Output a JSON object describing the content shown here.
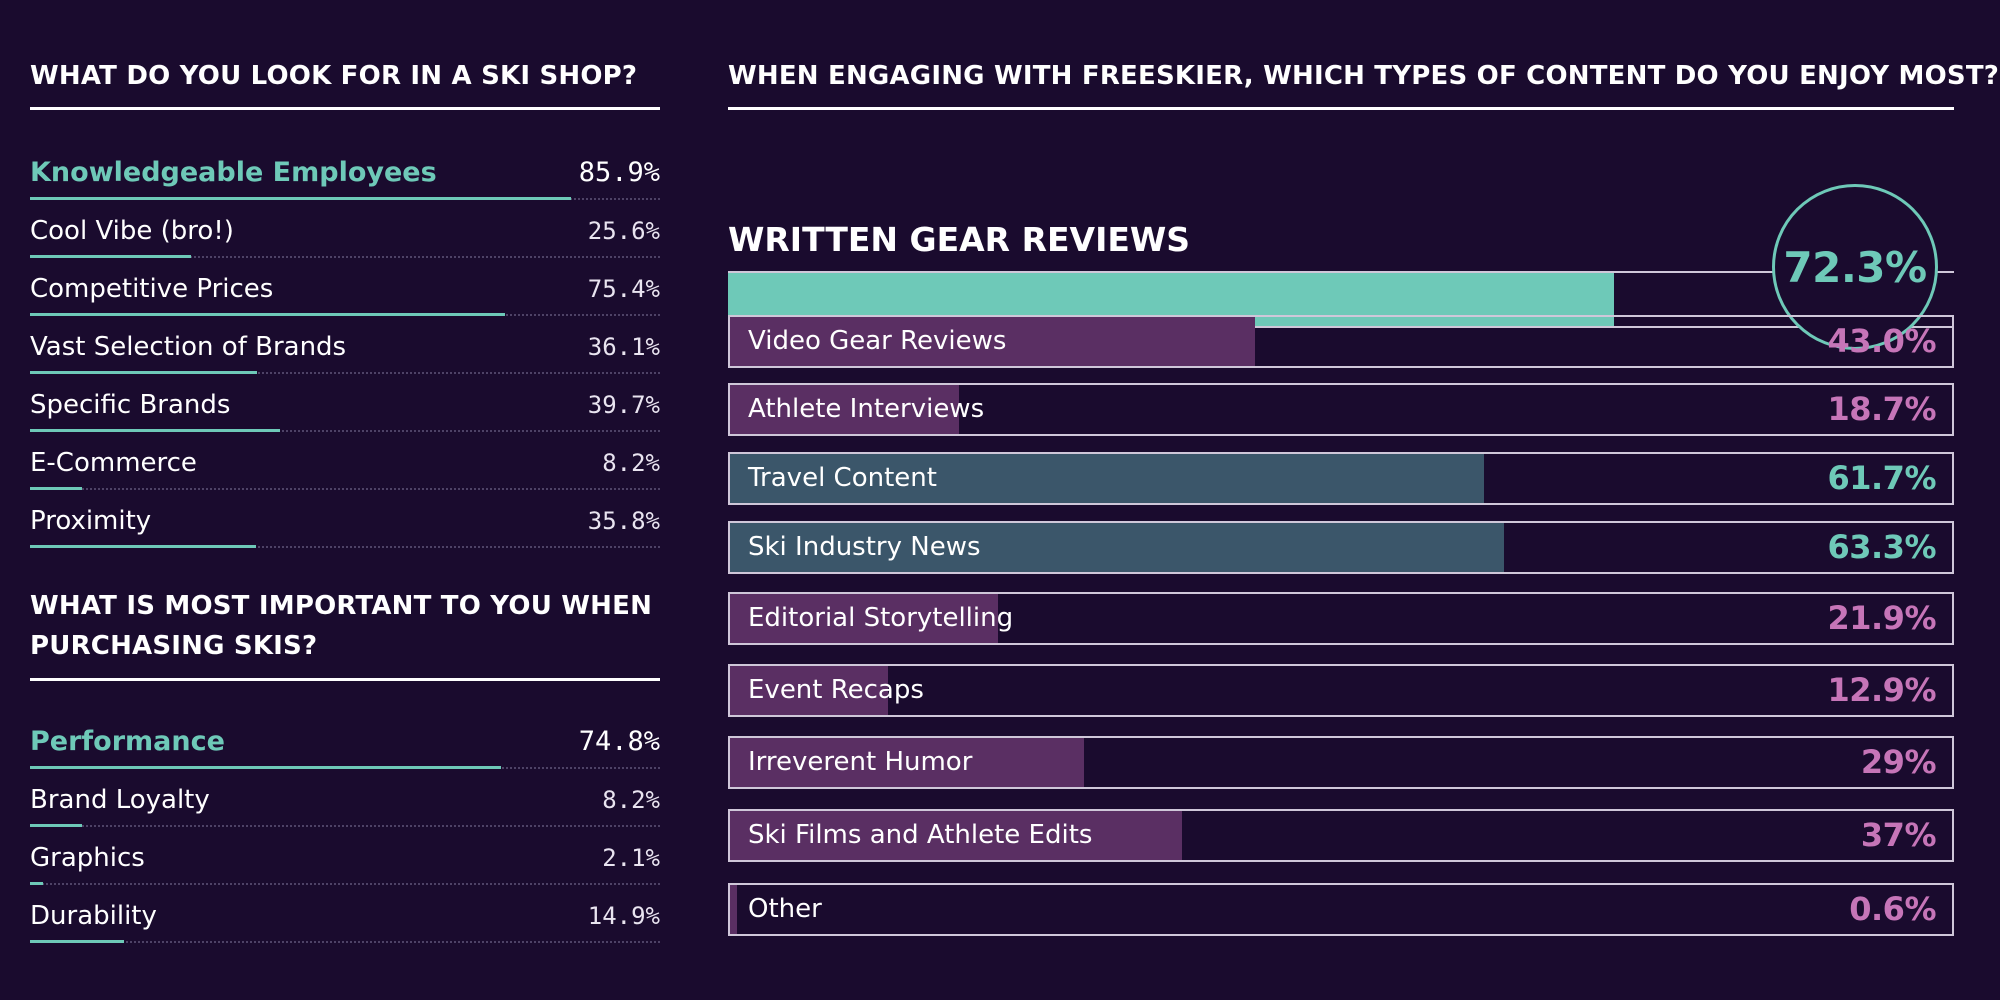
{
  "colors": {
    "background": "#1a0b2e",
    "teal": "#6ec9b8",
    "purple_bar": "#5a2f63",
    "purple_text": "#c675b8",
    "slate_bar": "#3b566a",
    "border": "#cfc7d9"
  },
  "chart_data": [
    {
      "type": "bar",
      "title": "WHAT DO YOU LOOK FOR IN A SKI SHOP?",
      "categories": [
        "Knowledgeable Employees",
        "Cool Vibe (bro!)",
        "Competitive Prices",
        "Vast Selection of Brands",
        "Specific Brands",
        "E-Commerce",
        "Proximity"
      ],
      "values": [
        85.9,
        25.6,
        75.4,
        36.1,
        39.7,
        8.2,
        35.8
      ],
      "labels": [
        "85.9%",
        "25.6%",
        "75.4%",
        "36.1%",
        "39.7%",
        "8.2%",
        "35.8%"
      ],
      "ylim": [
        0,
        100
      ]
    },
    {
      "type": "bar",
      "title": "WHAT IS MOST IMPORTANT TO YOU WHEN PURCHASING SKIS?",
      "categories": [
        "Performance",
        "Brand Loyalty",
        "Graphics",
        "Durability"
      ],
      "values": [
        74.8,
        8.2,
        2.1,
        14.9
      ],
      "labels": [
        "74.8%",
        "8.2%",
        "2.1%",
        "14.9%"
      ],
      "ylim": [
        0,
        100
      ]
    },
    {
      "type": "bar",
      "title": "WHEN ENGAGING WITH FREESKIER, WHICH TYPES OF CONTENT DO YOU ENJOY MOST?",
      "highlight": {
        "category": "WRITTEN GEAR REVIEWS",
        "value": 72.3,
        "label": "72.3%"
      },
      "categories": [
        "Video Gear Reviews",
        "Athlete Interviews",
        "Travel Content",
        "Ski Industry News",
        "Editorial Storytelling",
        "Event Recaps",
        "Irreverent Humor",
        "Ski Films and Athlete Edits",
        "Other"
      ],
      "values": [
        43.0,
        18.7,
        61.7,
        63.3,
        21.9,
        12.9,
        29,
        37,
        0.6
      ],
      "labels": [
        "43.0%",
        "18.7%",
        "61.7%",
        "63.3%",
        "21.9%",
        "12.9%",
        "29%",
        "37%",
        "0.6%"
      ],
      "accent": [
        "purple",
        "purple",
        "teal",
        "teal",
        "purple",
        "purple",
        "purple",
        "purple",
        "purple"
      ],
      "ylim": [
        0,
        100
      ]
    }
  ]
}
